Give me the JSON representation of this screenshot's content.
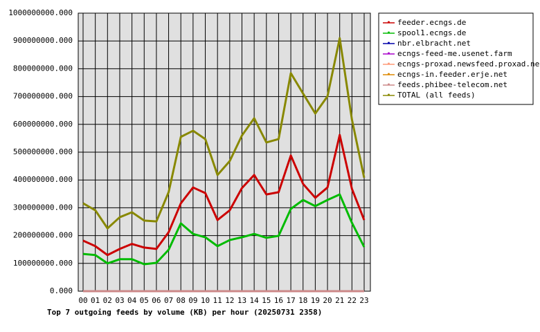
{
  "chart_data": {
    "type": "line",
    "title": "Top 7 outgoing feeds by volume (KB) per hour (20250731 2358)",
    "categories": [
      "00",
      "01",
      "02",
      "03",
      "04",
      "05",
      "06",
      "07",
      "08",
      "09",
      "10",
      "11",
      "12",
      "13",
      "14",
      "15",
      "16",
      "17",
      "18",
      "19",
      "20",
      "21",
      "22",
      "23"
    ],
    "series": [
      {
        "name": "feeder.ecngs.de",
        "color": "#cc0000",
        "values": [
          182000000,
          162000000,
          130000000,
          152000000,
          170000000,
          157000000,
          152000000,
          212000000,
          316000000,
          373000000,
          353000000,
          256000000,
          291000000,
          371000000,
          418000000,
          348000000,
          356000000,
          488000000,
          386000000,
          336000000,
          373000000,
          562000000,
          368000000,
          256000000
        ]
      },
      {
        "name": "spool1.ecngs.de",
        "color": "#00bb00",
        "values": [
          134000000,
          130000000,
          100000000,
          115000000,
          115000000,
          97000000,
          102000000,
          149000000,
          244000000,
          206000000,
          194000000,
          162000000,
          184000000,
          194000000,
          206000000,
          192000000,
          199000000,
          296000000,
          328000000,
          306000000,
          328000000,
          348000000,
          246000000,
          159000000
        ]
      },
      {
        "name": "nbr.elbracht.net",
        "color": "#0000aa",
        "values": [
          0,
          0,
          0,
          0,
          0,
          0,
          0,
          0,
          0,
          0,
          0,
          0,
          0,
          0,
          0,
          0,
          0,
          0,
          0,
          0,
          0,
          0,
          0,
          0
        ]
      },
      {
        "name": "ecngs-feed-me.usenet.farm",
        "color": "#aa00cc",
        "values": [
          0,
          0,
          0,
          0,
          0,
          0,
          0,
          0,
          0,
          0,
          0,
          0,
          0,
          0,
          0,
          0,
          0,
          0,
          0,
          0,
          0,
          0,
          0,
          0
        ]
      },
      {
        "name": "ecngs-proxad.newsfeed.proxad.net",
        "color": "#ff9977",
        "values": [
          0,
          0,
          0,
          0,
          0,
          0,
          0,
          0,
          0,
          0,
          0,
          0,
          0,
          0,
          0,
          0,
          0,
          0,
          0,
          0,
          0,
          0,
          0,
          0
        ]
      },
      {
        "name": "ecngs-in.feeder.erje.net",
        "color": "#dd8800",
        "values": [
          0,
          0,
          0,
          0,
          0,
          0,
          0,
          0,
          0,
          0,
          0,
          0,
          0,
          0,
          0,
          0,
          0,
          0,
          0,
          0,
          0,
          0,
          0,
          0
        ]
      },
      {
        "name": "feeds.phibee-telecom.net",
        "color": "#cc8888",
        "values": [
          0,
          0,
          0,
          0,
          0,
          0,
          0,
          0,
          0,
          0,
          0,
          0,
          0,
          0,
          0,
          0,
          0,
          0,
          0,
          0,
          0,
          0,
          0,
          0
        ]
      },
      {
        "name": "TOTAL (all feeds)",
        "color": "#888800",
        "values": [
          316000000,
          291000000,
          226000000,
          266000000,
          284000000,
          254000000,
          251000000,
          356000000,
          555000000,
          577000000,
          547000000,
          418000000,
          468000000,
          560000000,
          622000000,
          535000000,
          547000000,
          784000000,
          711000000,
          639000000,
          701000000,
          910000000,
          617000000,
          408000000
        ]
      }
    ],
    "ylim": [
      0,
      1000000000
    ],
    "yticks": [
      {
        "value": 0,
        "label": "0.000"
      },
      {
        "value": 100000000,
        "label": "100000000.000"
      },
      {
        "value": 200000000,
        "label": "200000000.000"
      },
      {
        "value": 300000000,
        "label": "300000000.000"
      },
      {
        "value": 400000000,
        "label": "400000000.000"
      },
      {
        "value": 500000000,
        "label": "500000000.000"
      },
      {
        "value": 600000000,
        "label": "600000000.000"
      },
      {
        "value": 700000000,
        "label": "700000000.000"
      },
      {
        "value": 800000000,
        "label": "800000000.000"
      },
      {
        "value": 900000000,
        "label": "900000000.000"
      },
      {
        "value": 1000000000,
        "label": "1000000000.000"
      }
    ],
    "grid": true,
    "legend": "right"
  }
}
